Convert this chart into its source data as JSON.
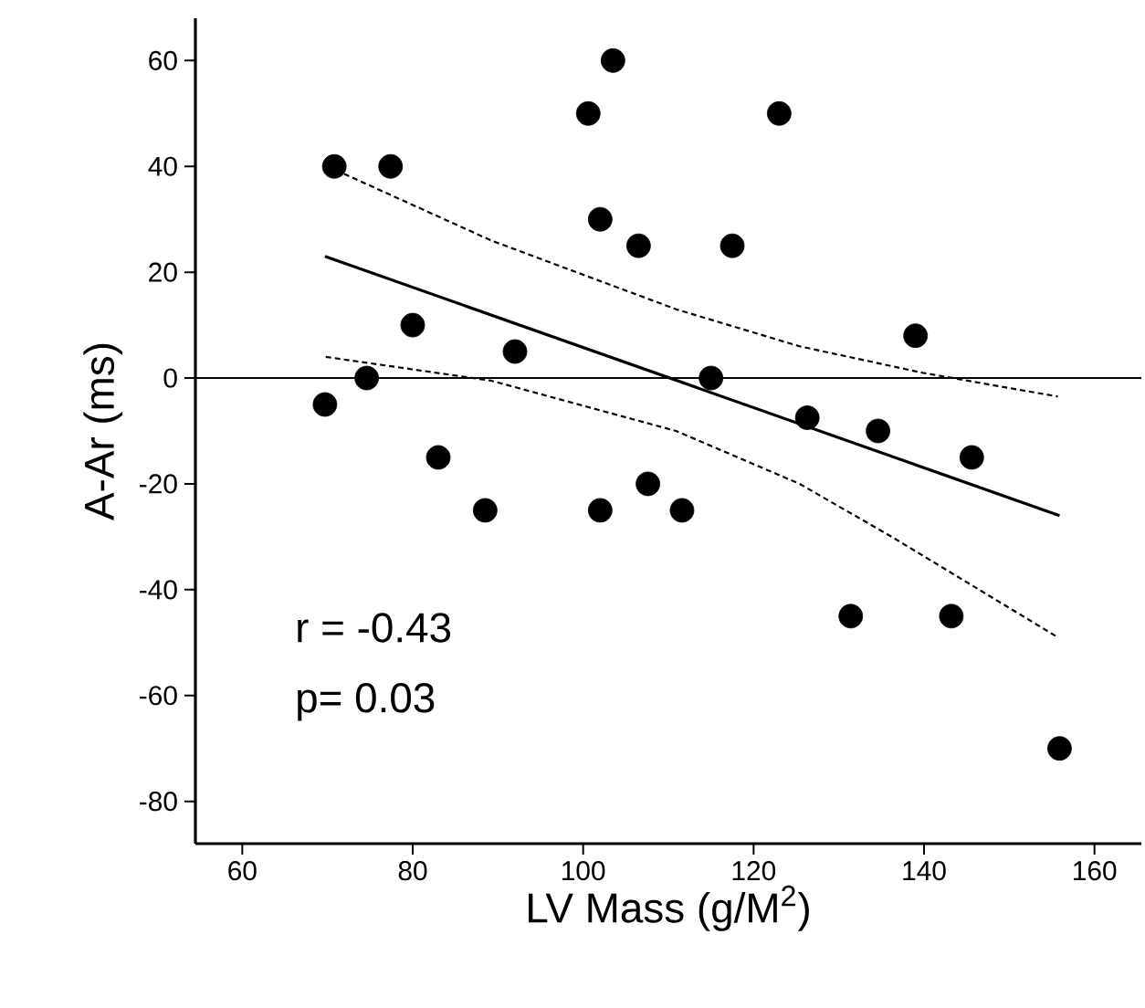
{
  "chart_data": {
    "type": "scatter",
    "xlabel": "LV Mass (g/M$^{2}$)",
    "ylabel": "A-Ar (ms)",
    "xlim": [
      54.5,
      165.5
    ],
    "ylim": [
      -88,
      68
    ],
    "xticks": [
      60,
      80,
      100,
      120,
      140,
      160
    ],
    "yticks": [
      -80,
      -60,
      -40,
      -20,
      0,
      20,
      40,
      60
    ],
    "grid": false,
    "marker": "circle",
    "series": [
      {
        "color": "#000000",
        "x": [
          70.8,
          77.4,
          100.6,
          103.5,
          123,
          102,
          106.5,
          117.5,
          80,
          92,
          139,
          74.6,
          115,
          69.7,
          126.3,
          134.6,
          145.6,
          83,
          107.6,
          88.5,
          102,
          111.6,
          131.4,
          143.2,
          155.9
        ],
        "values": [
          40,
          40,
          50,
          60,
          50,
          30,
          25,
          25,
          10,
          5,
          8,
          0,
          0,
          -5,
          -7.5,
          -10,
          -15,
          -15,
          -20,
          -25,
          -25,
          -25,
          -45,
          -45,
          -70
        ]
      },
      {
        "type": "line",
        "marker": "none",
        "line_style": "solid",
        "color": "#000000",
        "x": [
          69.7,
          155.9
        ],
        "values": [
          23,
          -26
        ]
      },
      {
        "type": "line",
        "marker": "none",
        "line_style": "dashed",
        "color": "#000000",
        "x": [
          70,
          89.2,
          110.9,
          125.4,
          139.8,
          155.7
        ],
        "values": [
          40,
          26,
          13,
          6,
          1,
          -3.5
        ]
      },
      {
        "type": "line",
        "marker": "none",
        "line_style": "dashed",
        "color": "#000000",
        "x": [
          69.8,
          89.2,
          110.9,
          125.4,
          136.2,
          155.7
        ],
        "values": [
          4,
          -0.5,
          -10,
          -20,
          -30,
          -49
        ]
      }
    ],
    "ref_lines": [
      {
        "axis": "y",
        "value": 0,
        "color": "#000000"
      }
    ],
    "annotations": [
      "r = -0.43",
      "p=  0.03"
    ]
  }
}
